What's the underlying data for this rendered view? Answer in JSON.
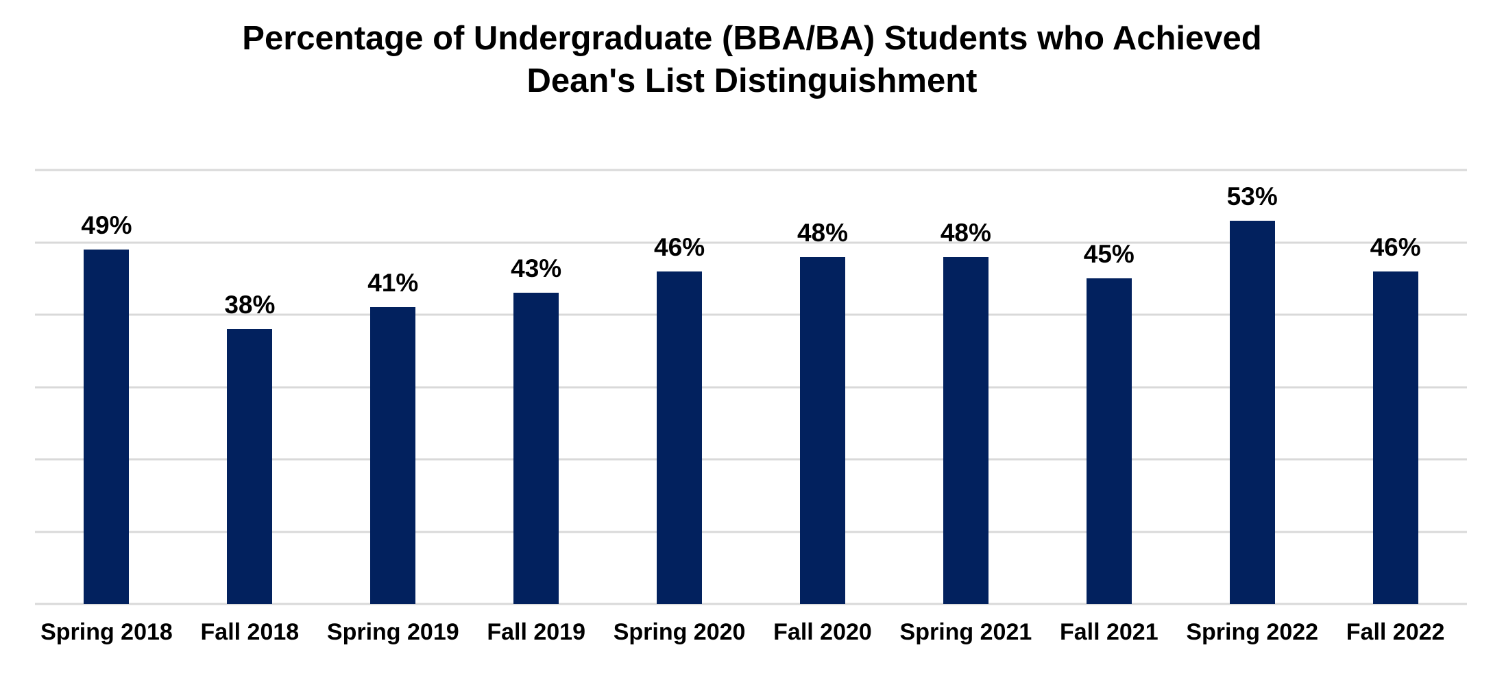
{
  "chart_data": {
    "type": "bar",
    "title": "Percentage of Undergraduate (BBA/BA) Students who Achieved Dean's List Distinguishment",
    "title_lines": [
      "Percentage of Undergraduate (BBA/BA) Students who Achieved",
      "Dean's List Distinguishment"
    ],
    "categories": [
      "Spring 2018",
      "Fall 2018",
      "Spring 2019",
      "Fall 2019",
      "Spring 2020",
      "Fall 2020",
      "Spring 2021",
      "Fall 2021",
      "Spring 2022",
      "Fall 2022"
    ],
    "values": [
      49,
      38,
      41,
      43,
      46,
      48,
      48,
      45,
      53,
      46
    ],
    "value_labels": [
      "49%",
      "38%",
      "41%",
      "43%",
      "46%",
      "48%",
      "48%",
      "45%",
      "53%",
      "46%"
    ],
    "xlabel": "",
    "ylabel": "",
    "ylim": [
      0,
      60
    ],
    "gridline_step": 10,
    "grid": true,
    "legend_position": "none",
    "y_axis_tick_labels_visible": false,
    "colors": {
      "bar": "#02215E",
      "gridline": "#D9D9D9",
      "text": "#000000",
      "background": "#FFFFFF"
    }
  }
}
